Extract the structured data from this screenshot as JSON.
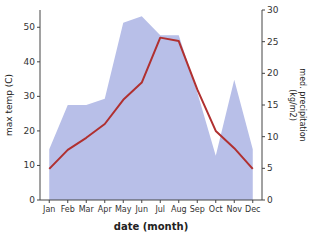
{
  "chart_data": {
    "type": "line",
    "xlabel": "date (month)",
    "ylabel": "max temp (C)",
    "y2label": "med. precipitation\n(kg/m2)",
    "categories": [
      "Jan",
      "Feb",
      "Mar",
      "Apr",
      "May",
      "Jun",
      "Jul",
      "Aug",
      "Sep",
      "Oct",
      "Nov",
      "Dec"
    ],
    "series": [
      {
        "type": "area",
        "axis": "y2",
        "color": "#b8bfe8",
        "values": [
          8,
          15,
          15,
          16,
          28,
          29,
          26,
          26,
          17,
          7,
          19,
          8
        ]
      },
      {
        "type": "line",
        "color": "#b03030",
        "values": [
          9,
          14.5,
          18,
          22,
          29,
          34,
          47,
          46,
          32,
          20,
          15,
          9
        ]
      }
    ],
    "ylim": [
      0,
      55
    ],
    "yticks": [
      0,
      10,
      20,
      30,
      40,
      50
    ],
    "y2lim": [
      0,
      30
    ],
    "y2ticks": [
      0,
      5,
      10,
      15,
      20,
      25,
      30
    ]
  }
}
